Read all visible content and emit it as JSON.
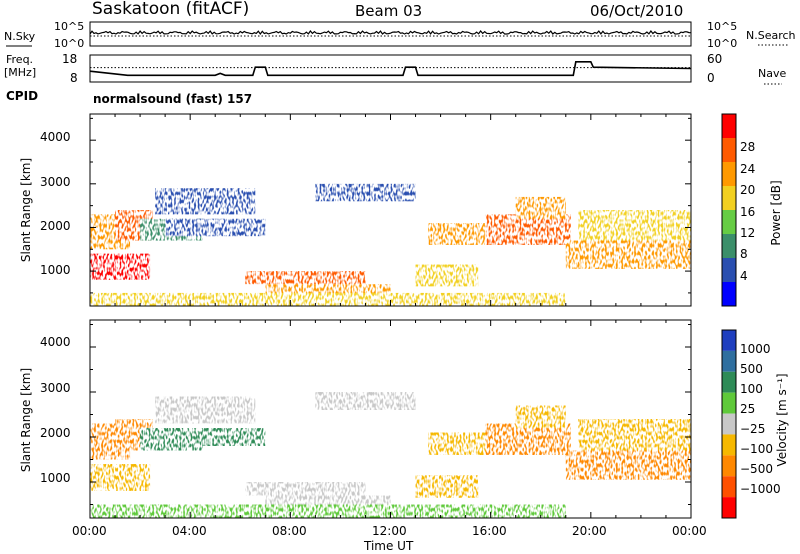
{
  "header": {
    "title": "Saskatoon (fitACF)",
    "beam": "Beam 03",
    "date": "06/Oct/2010"
  },
  "noise_panel": {
    "left_label": "N.Sky",
    "right_label": "N.Search",
    "left_ticks": [
      "10^5",
      "10^0"
    ],
    "right_ticks": [
      "10^5",
      "10^0"
    ]
  },
  "freq_panel": {
    "left_label_line1": "Freq.",
    "left_label_line2": "[MHz]",
    "right_label": "Nave",
    "left_ticks": [
      "18",
      "8"
    ],
    "right_ticks": [
      "60",
      "0"
    ]
  },
  "cpid": {
    "label": "CPID",
    "value": "normalsound (fast) 157"
  },
  "time_axis": {
    "label": "Time UT",
    "ticks": [
      "00:00",
      "04:00",
      "08:00",
      "12:00",
      "16:00",
      "20:00",
      "00:00"
    ]
  },
  "range_axis": {
    "label": "Slant Range [km]",
    "ticks": [
      "1000",
      "2000",
      "3000",
      "4000"
    ]
  },
  "colorbars": {
    "power": {
      "label": "Power [dB]",
      "ticks": [
        "4",
        "8",
        "12",
        "16",
        "20",
        "24",
        "28"
      ],
      "colors": [
        "#0000ff",
        "#2a4fb0",
        "#3b8f6a",
        "#66cc44",
        "#f2d020",
        "#ff9900",
        "#ff5a00",
        "#ff0000"
      ]
    },
    "velocity": {
      "label": "Velocity [m s⁻¹]",
      "ticks": [
        "1000",
        "500",
        "100",
        "25",
        "−25",
        "−100",
        "−500",
        "−1000"
      ],
      "colors": [
        "#1f3fbf",
        "#2f6f9f",
        "#2e8b57",
        "#5fc93a",
        "#c8c8c8",
        "#f6b800",
        "#ff8800",
        "#ff5000",
        "#ff0000"
      ]
    }
  },
  "chart_data": {
    "type": "heatmap",
    "x_unit": "hours UT",
    "xlim": [
      0,
      24
    ],
    "ylim": [
      200,
      4600
    ],
    "ylabel": "Slant Range [km]",
    "xlabel": "Time UT",
    "echo_regions": [
      {
        "t0": 0.0,
        "t1": 2.4,
        "r0": 800,
        "r1": 1400,
        "power_db": 28,
        "velocity": -50
      },
      {
        "t0": 0.0,
        "t1": 1.6,
        "r0": 1500,
        "r1": 2300,
        "power_db": 22,
        "velocity": -150
      },
      {
        "t0": 1.0,
        "t1": 2.5,
        "r0": 1700,
        "r1": 2400,
        "power_db": 26,
        "velocity": -200
      },
      {
        "t0": 2.0,
        "t1": 4.5,
        "r0": 1700,
        "r1": 2200,
        "power_db": 8,
        "velocity": 300
      },
      {
        "t0": 2.6,
        "t1": 6.6,
        "r0": 2300,
        "r1": 2900,
        "power_db": 6,
        "velocity": 0
      },
      {
        "t0": 3.0,
        "t1": 7.0,
        "r0": 1800,
        "r1": 2200,
        "power_db": 6,
        "velocity": 150
      },
      {
        "t0": 6.2,
        "t1": 11.0,
        "r0": 700,
        "r1": 1000,
        "power_db": 24,
        "velocity": 0
      },
      {
        "t0": 7.0,
        "t1": 12.0,
        "r0": 450,
        "r1": 700,
        "power_db": 20,
        "velocity": 0
      },
      {
        "t0": 9.0,
        "t1": 13.0,
        "r0": 2600,
        "r1": 3000,
        "power_db": 6,
        "velocity": 0
      },
      {
        "t0": 13.0,
        "t1": 15.5,
        "r0": 650,
        "r1": 1150,
        "power_db": 18,
        "velocity": -50
      },
      {
        "t0": 13.5,
        "t1": 17.0,
        "r0": 1600,
        "r1": 2100,
        "power_db": 20,
        "velocity": -50
      },
      {
        "t0": 15.8,
        "t1": 19.2,
        "r0": 1600,
        "r1": 2300,
        "power_db": 24,
        "velocity": -400
      },
      {
        "t0": 17.0,
        "t1": 19.0,
        "r0": 2200,
        "r1": 2700,
        "power_db": 20,
        "velocity": -100
      },
      {
        "t0": 19.0,
        "t1": 24.0,
        "r0": 1050,
        "r1": 1700,
        "power_db": 22,
        "velocity": -150
      },
      {
        "t0": 19.5,
        "t1": 24.0,
        "r0": 1700,
        "r1": 2400,
        "power_db": 18,
        "velocity": -60
      },
      {
        "t0": 0.0,
        "t1": 19.0,
        "r0": 200,
        "r1": 500,
        "power_db": 16,
        "velocity": 50
      }
    ],
    "freq_mhz": [
      {
        "t": 0.0,
        "v": 12.0
      },
      {
        "t": 1.5,
        "v": 10.5
      },
      {
        "t": 5.0,
        "v": 10.5
      },
      {
        "t": 5.2,
        "v": 11.2
      },
      {
        "t": 5.4,
        "v": 10.5
      },
      {
        "t": 6.5,
        "v": 10.5
      },
      {
        "t": 6.6,
        "v": 13.5
      },
      {
        "t": 7.0,
        "v": 13.5
      },
      {
        "t": 7.1,
        "v": 10.5
      },
      {
        "t": 12.5,
        "v": 10.5
      },
      {
        "t": 12.6,
        "v": 13.5
      },
      {
        "t": 13.0,
        "v": 13.5
      },
      {
        "t": 13.1,
        "v": 10.5
      },
      {
        "t": 19.3,
        "v": 10.5
      },
      {
        "t": 19.4,
        "v": 15.5
      },
      {
        "t": 20.0,
        "v": 15.5
      },
      {
        "t": 20.1,
        "v": 13.5
      },
      {
        "t": 24.0,
        "v": 13.0
      }
    ],
    "nave_level": 32
  }
}
